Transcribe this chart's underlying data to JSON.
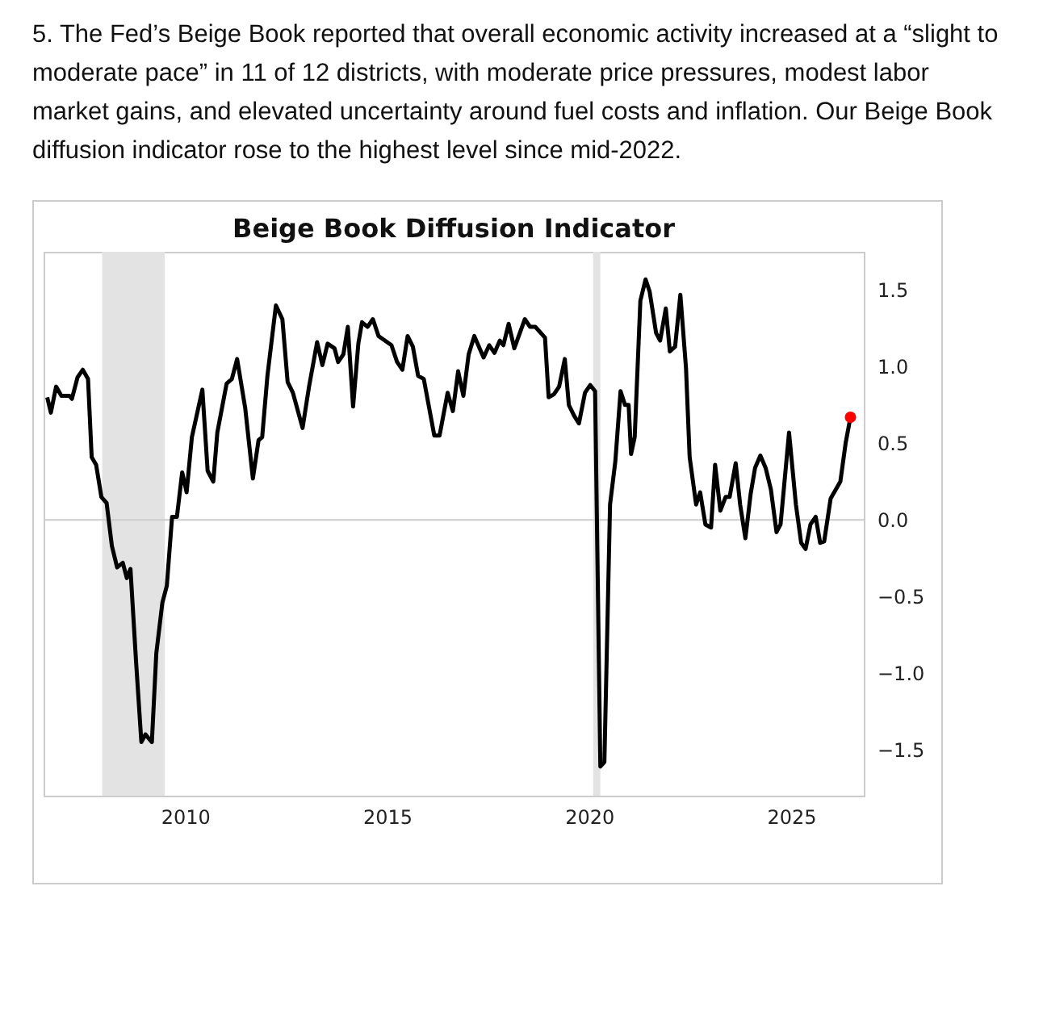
{
  "chart_data": {
    "type": "line",
    "title": "Beige Book Diffusion Indicator",
    "annotations": [
      "5. The Fed’s Beige Book reported that overall economic activity increased at a “slight to moderate pace” in 11 of 12 districts, with moderate price pressures, modest labor market gains, and elevated uncertainty around fuel costs and inflation. Our Beige Book diffusion indicator rose to the highest level since mid-2022."
    ],
    "xlim": [
      2006.5,
      2026.8
    ],
    "xticks": [
      2010,
      2015,
      2020,
      2025
    ],
    "ylim": [
      -1.8,
      1.75
    ],
    "yticks": [
      {
        "value": -1.5,
        "label": "−1.5"
      },
      {
        "value": -1,
        "label": "−1.0"
      },
      {
        "value": -0.5,
        "label": "−0.5"
      },
      {
        "value": 0,
        "label": "0.0"
      },
      {
        "value": 0.5,
        "label": "0.5"
      },
      {
        "value": 1,
        "label": "1.0"
      },
      {
        "value": 1.5,
        "label": "1.5"
      }
    ],
    "grid": false,
    "ref_lines": [
      {
        "axis": "y",
        "value": 0,
        "color": "#cccccc"
      }
    ],
    "bands": [
      {
        "axis": "x",
        "from": 2007.95,
        "to": 2009.5,
        "color": "#e3e3e3"
      },
      {
        "axis": "x",
        "from": 2020.1,
        "to": 2020.28,
        "color": "#e3e3e3"
      }
    ],
    "series": [
      {
        "color": "#000000",
        "x": [
          2006.59,
          2006.68,
          2006.81,
          2006.94,
          2007.14,
          2007.2,
          2007.34,
          2007.47,
          2007.6,
          2007.69,
          2007.8,
          2007.93,
          2008.06,
          2008.19,
          2008.32,
          2008.46,
          2008.56,
          2008.65,
          2008.79,
          2008.92,
          2009.02,
          2009.18,
          2009.29,
          2009.44,
          2009.55,
          2009.68,
          2009.8,
          2009.93,
          2010.04,
          2010.17,
          2010.43,
          2010.56,
          2010.7,
          2010.8,
          2011.03,
          2011.16,
          2011.29,
          2011.49,
          2011.68,
          2011.82,
          2011.91,
          2012.04,
          2012.25,
          2012.41,
          2012.54,
          2012.67,
          2012.91,
          2013.07,
          2013.27,
          2013.4,
          2013.53,
          2013.7,
          2013.79,
          2013.92,
          2014.03,
          2014.16,
          2014.29,
          2014.38,
          2014.52,
          2014.65,
          2014.79,
          2015.11,
          2015.25,
          2015.38,
          2015.51,
          2015.64,
          2015.77,
          2015.91,
          2016.17,
          2016.3,
          2016.5,
          2016.63,
          2016.76,
          2016.89,
          2017.02,
          2017.16,
          2017.39,
          2017.53,
          2017.66,
          2017.79,
          2017.88,
          2018.01,
          2018.15,
          2018.41,
          2018.54,
          2018.67,
          2018.91,
          2019.0,
          2019.13,
          2019.26,
          2019.4,
          2019.5,
          2019.63,
          2019.75,
          2019.9,
          2020.03,
          2020.15,
          2020.28,
          2020.38,
          2020.52,
          2020.65,
          2020.78,
          2020.89,
          2020.98,
          2021.04,
          2021.13,
          2021.27,
          2021.4,
          2021.5,
          2021.66,
          2021.76,
          2021.9,
          2022.0,
          2022.13,
          2022.26,
          2022.4,
          2022.49,
          2022.65,
          2022.75,
          2022.88,
          2023.02,
          2023.12,
          2023.25,
          2023.38,
          2023.48,
          2023.63,
          2023.74,
          2023.87,
          2024.0,
          2024.11,
          2024.24,
          2024.37,
          2024.5,
          2024.64,
          2024.74,
          2024.95,
          2025.12,
          2025.25,
          2025.36,
          2025.48,
          2025.61,
          2025.72,
          2025.82,
          2025.98,
          2026.22,
          2026.35,
          2026.47
        ],
        "values": [
          0.8,
          0.7,
          0.87,
          0.81,
          0.81,
          0.79,
          0.93,
          0.98,
          0.92,
          0.41,
          0.36,
          0.15,
          0.11,
          -0.17,
          -0.31,
          -0.28,
          -0.38,
          -0.32,
          -0.93,
          -1.45,
          -1.4,
          -1.45,
          -0.87,
          -0.54,
          -0.43,
          0.02,
          0.02,
          0.31,
          0.18,
          0.54,
          0.85,
          0.32,
          0.25,
          0.57,
          0.89,
          0.92,
          1.05,
          0.73,
          0.27,
          0.52,
          0.54,
          0.94,
          1.4,
          1.31,
          0.9,
          0.83,
          0.6,
          0.87,
          1.16,
          1.01,
          1.15,
          1.12,
          1.03,
          1.08,
          1.26,
          0.74,
          1.15,
          1.29,
          1.26,
          1.31,
          1.2,
          1.14,
          1.03,
          0.98,
          1.2,
          1.13,
          0.94,
          0.92,
          0.55,
          0.55,
          0.83,
          0.71,
          0.97,
          0.81,
          1.08,
          1.2,
          1.06,
          1.14,
          1.09,
          1.17,
          1.14,
          1.28,
          1.12,
          1.31,
          1.26,
          1.26,
          1.19,
          0.8,
          0.82,
          0.87,
          1.05,
          0.75,
          0.68,
          0.63,
          0.83,
          0.88,
          0.84,
          -1.61,
          -1.58,
          0.1,
          0.38,
          0.84,
          0.75,
          0.75,
          0.43,
          0.54,
          1.43,
          1.57,
          1.49,
          1.22,
          1.17,
          1.38,
          1.1,
          1.13,
          1.47,
          0.99,
          0.41,
          0.1,
          0.18,
          -0.03,
          -0.05,
          0.36,
          0.06,
          0.15,
          0.15,
          0.37,
          0.1,
          -0.12,
          0.17,
          0.34,
          0.42,
          0.34,
          0.2,
          -0.08,
          -0.03,
          0.57,
          0.1,
          -0.15,
          -0.19,
          -0.03,
          0.02,
          -0.15,
          -0.14,
          0.14,
          0.25,
          0.5,
          0.67
        ]
      },
      {
        "type": "scatter",
        "color": "#ff0000",
        "x": [
          2026.47
        ],
        "values": [
          0.67
        ]
      }
    ]
  }
}
